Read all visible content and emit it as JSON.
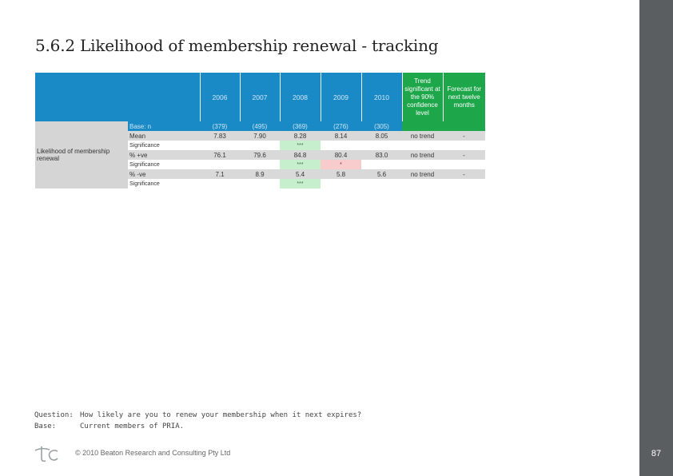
{
  "page": {
    "title": "5.6.2 Likelihood of membership renewal - tracking",
    "page_number": "87"
  },
  "table": {
    "headers": {
      "years": [
        "2006",
        "2007",
        "2008",
        "2009",
        "2010"
      ],
      "trend": "Trend significant at the 90% confidence level",
      "forecast": "Forecast for next twelve months"
    },
    "row_label": "Likelihood of membership renewal",
    "rows": {
      "base": {
        "label": "Base: n",
        "values": [
          "(379)",
          "(495)",
          "(369)",
          "(276)",
          "(305)"
        ]
      },
      "mean": {
        "label": "Mean",
        "values": [
          "7.83",
          "7.90",
          "8.28",
          "8.14",
          "8.05"
        ],
        "trend": "no trend",
        "forecast": "-"
      },
      "sig1": {
        "label": "Significance",
        "marks": [
          "",
          "",
          "***",
          "",
          ""
        ]
      },
      "pos": {
        "label": "% +ve",
        "values": [
          "76.1",
          "79.6",
          "84.8",
          "80.4",
          "83.0"
        ],
        "trend": "no trend",
        "forecast": "-"
      },
      "sig2": {
        "label": "Significance",
        "marks": [
          "",
          "",
          "***",
          "*",
          ""
        ]
      },
      "neg": {
        "label": "% -ve",
        "values": [
          "7.1",
          "8.9",
          "5.4",
          "5.8",
          "5.6"
        ],
        "trend": "no trend",
        "forecast": "-"
      },
      "sig3": {
        "label": "Significance",
        "marks": [
          "",
          "",
          "***",
          "",
          ""
        ]
      }
    }
  },
  "footer": {
    "question_label": "Question:",
    "question": "How likely are you to renew your membership when it next expires?",
    "base_label": "Base:",
    "base": "Current members of PRIA.",
    "copyright": "© 2010 Beaton Research and Consulting Pty Ltd"
  },
  "colors": {
    "header_blue": "#1a8ac6",
    "header_green": "#1ea64a",
    "sig_green": "#c6efce",
    "sig_red": "#f8cbcc",
    "sidebar": "#5b5e60"
  }
}
